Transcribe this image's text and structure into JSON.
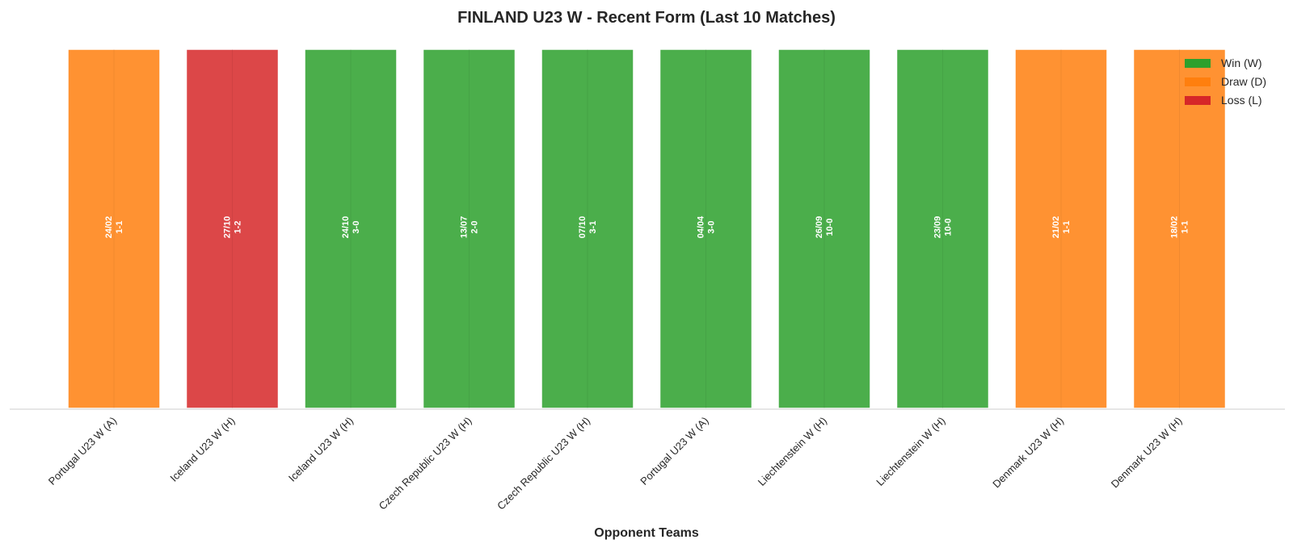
{
  "chart_data": {
    "type": "bar",
    "title": "FINLAND U23 W - Recent Form (Last 10 Matches)",
    "xlabel": "Opponent Teams",
    "ylabel": "",
    "grid": false,
    "legend_placement": "top-right",
    "colors": {
      "W": "#2ca02c",
      "D": "#ff7f0e",
      "L": "#d62728"
    },
    "legend": [
      {
        "key": "W",
        "label": "Win (W)"
      },
      {
        "key": "D",
        "label": "Draw (D)"
      },
      {
        "key": "L",
        "label": "Loss (L)"
      }
    ],
    "matches": [
      {
        "opponent": "Portugal U23 W (A)",
        "result": "D",
        "date": "24/02",
        "score": "1-1",
        "value": 1
      },
      {
        "opponent": "Iceland U23 W (H)",
        "result": "L",
        "date": "27/10",
        "score": "1-2",
        "value": 1
      },
      {
        "opponent": "Iceland U23 W (H)",
        "result": "W",
        "date": "24/10",
        "score": "3-0",
        "value": 1
      },
      {
        "opponent": "Czech Republic U23 W (H)",
        "result": "W",
        "date": "13/07",
        "score": "2-0",
        "value": 1
      },
      {
        "opponent": "Czech Republic U23 W (H)",
        "result": "W",
        "date": "07/10",
        "score": "3-1",
        "value": 1
      },
      {
        "opponent": "Portugal U23 W (A)",
        "result": "W",
        "date": "04/04",
        "score": "3-0",
        "value": 1
      },
      {
        "opponent": "Liechtenstein W (H)",
        "result": "W",
        "date": "26/09",
        "score": "10-0",
        "value": 1
      },
      {
        "opponent": "Liechtenstein W (H)",
        "result": "W",
        "date": "23/09",
        "score": "10-0",
        "value": 1
      },
      {
        "opponent": "Denmark U23 W (H)",
        "result": "D",
        "date": "21/02",
        "score": "1-1",
        "value": 1
      },
      {
        "opponent": "Denmark U23 W (H)",
        "result": "D",
        "date": "18/02",
        "score": "1-1",
        "value": 1
      }
    ]
  }
}
